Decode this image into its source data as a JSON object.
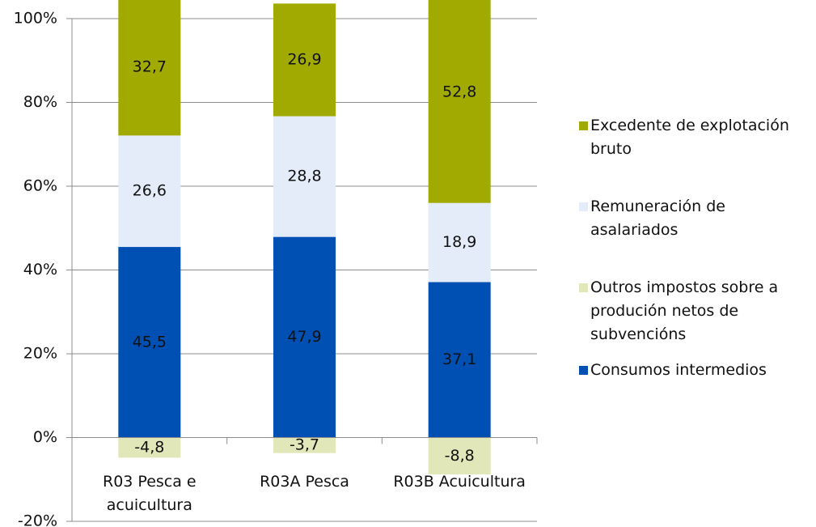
{
  "chart_data": {
    "type": "stacked_bar",
    "categories": [
      "R03 Pesca e acuicultura",
      "R03A Pesca",
      "R03B Acuicultura"
    ],
    "series": [
      {
        "name": "Consumos intermedios",
        "color": "#0050b4",
        "values": [
          45.5,
          47.9,
          37.1
        ],
        "value_labels": [
          "45,5",
          "47,9",
          "37,1"
        ]
      },
      {
        "name": "Outros impostos sobre a produción netos de subvencións",
        "color": "#e1e7b9",
        "values": [
          -4.8,
          -3.7,
          -8.8
        ],
        "value_labels": [
          "-4,8",
          "-3,7",
          "-8,8"
        ]
      },
      {
        "name": "Remuneración de asalariados",
        "color": "#e3ecf8",
        "values": [
          26.6,
          28.8,
          18.9
        ],
        "value_labels": [
          "26,6",
          "28,8",
          "18,9"
        ]
      },
      {
        "name": "Excedente de explotación bruto",
        "color": "#a0aa00",
        "values": [
          32.7,
          26.9,
          52.8
        ],
        "value_labels": [
          "32,7",
          "26,9",
          "52,8"
        ]
      }
    ],
    "ylim": [
      -20,
      100
    ],
    "yticks": [
      {
        "value": -20,
        "label": "-20%"
      },
      {
        "value": 0,
        "label": "0%"
      },
      {
        "value": 20,
        "label": "20%"
      },
      {
        "value": 40,
        "label": "40%"
      },
      {
        "value": 60,
        "label": "60%"
      },
      {
        "value": 80,
        "label": "80%"
      },
      {
        "value": 100,
        "label": "100%"
      }
    ],
    "grid": true,
    "legend": "right"
  }
}
